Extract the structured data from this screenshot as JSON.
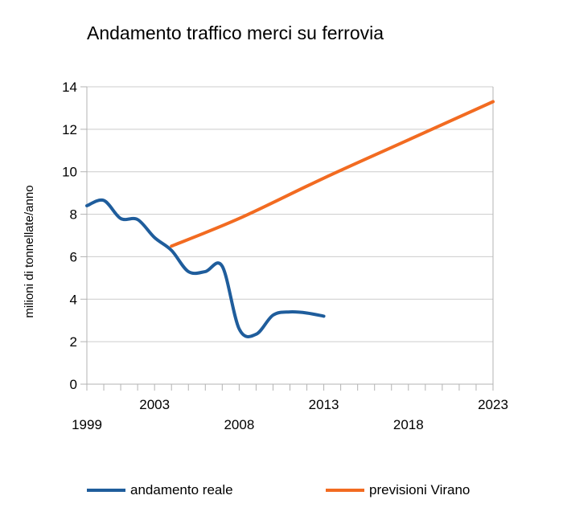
{
  "chart_data": {
    "type": "line",
    "title": "Andamento traffico merci su ferrovia",
    "xlabel": "",
    "ylabel": "milioni di tonnellate/anno",
    "xlim": [
      1999,
      2023
    ],
    "ylim": [
      0,
      14
    ],
    "yticks": [
      0,
      2,
      4,
      6,
      8,
      10,
      12,
      14
    ],
    "xtick_labels_upper": [
      "2003",
      "2013",
      "2023"
    ],
    "xtick_labels_lower": [
      "1999",
      "2008",
      "2018"
    ],
    "grid": "horizontal",
    "legend_position": "bottom",
    "series": [
      {
        "name": "andamento reale",
        "color": "#1f5d9c",
        "x": [
          1999,
          2000,
          2001,
          2002,
          2003,
          2004,
          2005,
          2006,
          2007,
          2008,
          2009,
          2010,
          2011,
          2012,
          2013
        ],
        "y": [
          8.4,
          8.65,
          7.8,
          7.75,
          6.9,
          6.3,
          5.3,
          5.3,
          5.55,
          2.6,
          2.35,
          3.25,
          3.4,
          3.35,
          3.2
        ]
      },
      {
        "name": "previsioni Virano",
        "color": "#f26b21",
        "x": [
          2004,
          2008,
          2013,
          2018,
          2023
        ],
        "y": [
          6.5,
          7.8,
          9.7,
          11.5,
          13.3
        ]
      }
    ]
  }
}
